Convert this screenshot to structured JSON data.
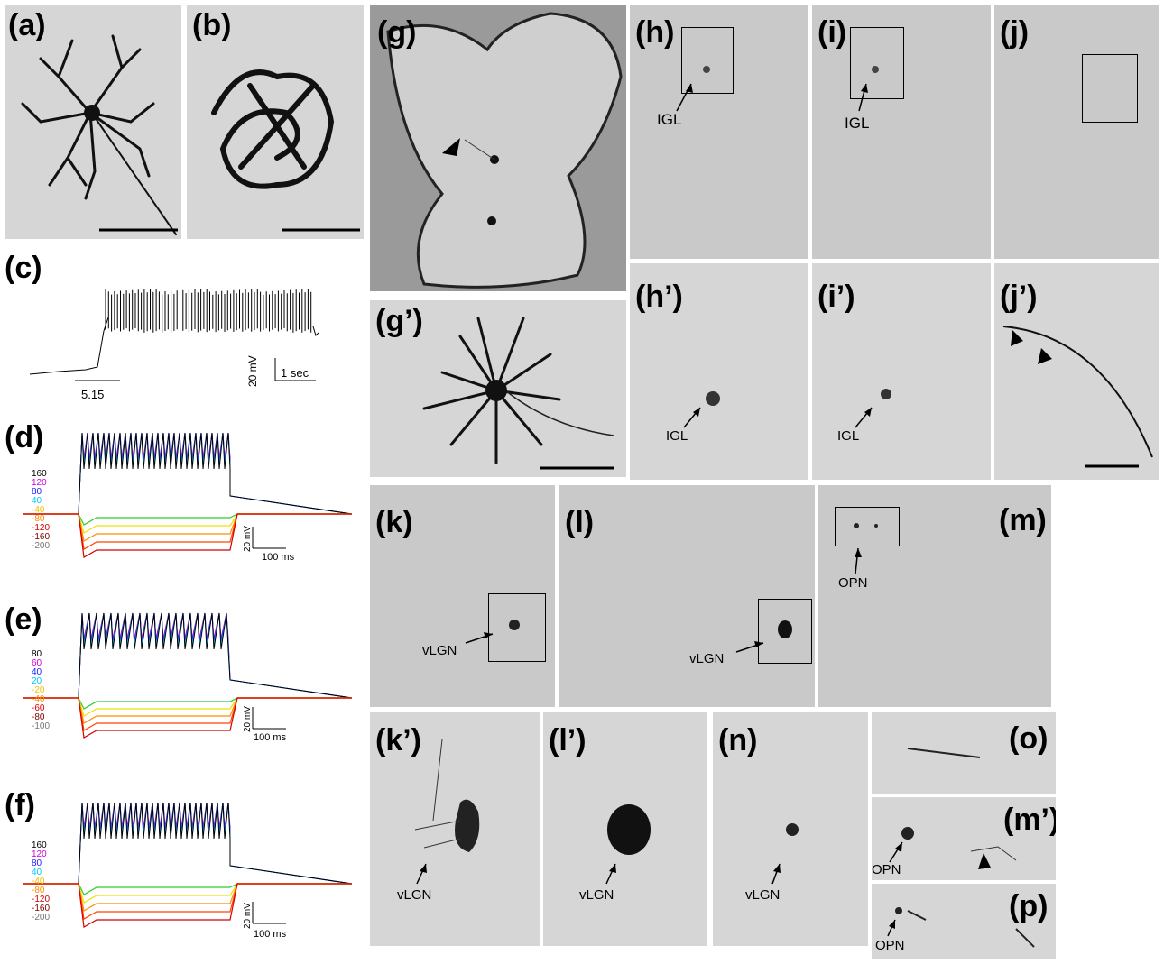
{
  "panels": {
    "a": "(a)",
    "b": "(b)",
    "c": "(c)",
    "d": "(d)",
    "e": "(e)",
    "f": "(f)",
    "g": "(g)",
    "g_prime": "(g’)",
    "h": "(h)",
    "i": "(i)",
    "j": "(j)",
    "h_prime": "(h’)",
    "i_prime": "(i’)",
    "j_prime": "(j’)",
    "k": "(k)",
    "l": "(l)",
    "m": "(m)",
    "k_prime": "(k’)",
    "l_prime": "(l’)",
    "n": "(n)",
    "o": "(o)",
    "m_prime": "(m’)",
    "p": "(p)"
  },
  "labels": {
    "igl": "IGL",
    "vlgn": "vLGN",
    "opn": "OPN"
  },
  "panel_c": {
    "scale_mv": "20 mV",
    "scale_time": "1 sec",
    "stim_value": "5.15"
  },
  "panel_d": {
    "levels": [
      "160",
      "120",
      "80",
      "40",
      "-40",
      "-80",
      "-120",
      "-160",
      "-200"
    ],
    "scale_mv": "20 mV",
    "scale_time": "100 ms"
  },
  "panel_e": {
    "levels": [
      "80",
      "60",
      "40",
      "20",
      "-20",
      "-40",
      "-60",
      "-80",
      "-100"
    ],
    "scale_mv": "20 mV",
    "scale_time": "100 ms"
  },
  "panel_f": {
    "levels": [
      "160",
      "120",
      "80",
      "40",
      "-40",
      "-80",
      "-120",
      "-160",
      "-200"
    ],
    "scale_mv": "20 mV",
    "scale_time": "100 ms"
  },
  "colors": {
    "trace_colors": [
      "#000000",
      "#d400d4",
      "#1a1aff",
      "#00c8ff",
      "#2ecc2e",
      "#f0e000",
      "#ff8c00",
      "#ff4500",
      "#d40000",
      "#7a0000",
      "#777777"
    ],
    "background": "#ffffff"
  }
}
